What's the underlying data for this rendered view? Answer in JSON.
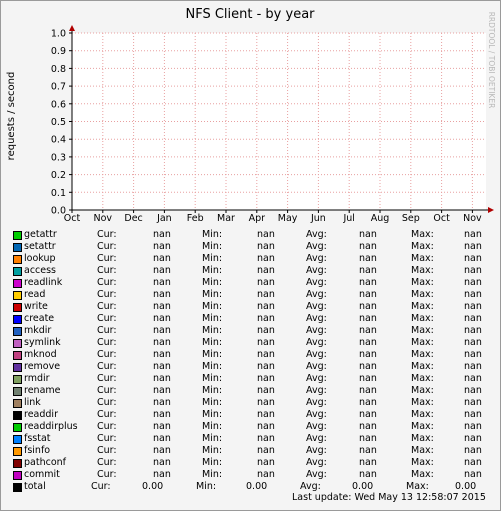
{
  "chart_data": {
    "type": "line",
    "title": "NFS Client - by year",
    "ylabel": "requests / second",
    "xlabel": "",
    "watermark": "RRDTOOL / TOBI OETIKER",
    "ylim": [
      0,
      1.0
    ],
    "yticks": [
      "0.0",
      "0.1",
      "0.2",
      "0.3",
      "0.4",
      "0.5",
      "0.6",
      "0.7",
      "0.8",
      "0.9",
      "1.0"
    ],
    "xticks": [
      "Oct",
      "Nov",
      "Dec",
      "Jan",
      "Feb",
      "Mar",
      "Apr",
      "May",
      "Jun",
      "Jul",
      "Aug",
      "Sep",
      "Oct",
      "Nov"
    ],
    "grid": true,
    "series": [
      {
        "name": "getattr",
        "color": "#00cc00",
        "cur": "nan",
        "min": "nan",
        "avg": "nan",
        "max": "nan"
      },
      {
        "name": "setattr",
        "color": "#0066b3",
        "cur": "nan",
        "min": "nan",
        "avg": "nan",
        "max": "nan"
      },
      {
        "name": "lookup",
        "color": "#ff8000",
        "cur": "nan",
        "min": "nan",
        "avg": "nan",
        "max": "nan"
      },
      {
        "name": "access",
        "color": "#00a0a0",
        "cur": "nan",
        "min": "nan",
        "avg": "nan",
        "max": "nan"
      },
      {
        "name": "readlink",
        "color": "#cc00cc",
        "cur": "nan",
        "min": "nan",
        "avg": "nan",
        "max": "nan"
      },
      {
        "name": "read",
        "color": "#ffcc00",
        "cur": "nan",
        "min": "nan",
        "avg": "nan",
        "max": "nan"
      },
      {
        "name": "write",
        "color": "#cc0000",
        "cur": "nan",
        "min": "nan",
        "avg": "nan",
        "max": "nan"
      },
      {
        "name": "create",
        "color": "#0000ff",
        "cur": "nan",
        "min": "nan",
        "avg": "nan",
        "max": "nan"
      },
      {
        "name": "mkdir",
        "color": "#2060c0",
        "cur": "nan",
        "min": "nan",
        "avg": "nan",
        "max": "nan"
      },
      {
        "name": "symlink",
        "color": "#c060c0",
        "cur": "nan",
        "min": "nan",
        "avg": "nan",
        "max": "nan"
      },
      {
        "name": "mknod",
        "color": "#c04080",
        "cur": "nan",
        "min": "nan",
        "avg": "nan",
        "max": "nan"
      },
      {
        "name": "remove",
        "color": "#6030a0",
        "cur": "nan",
        "min": "nan",
        "avg": "nan",
        "max": "nan"
      },
      {
        "name": "rmdir",
        "color": "#80a060",
        "cur": "nan",
        "min": "nan",
        "avg": "nan",
        "max": "nan"
      },
      {
        "name": "rename",
        "color": "#708070",
        "cur": "nan",
        "min": "nan",
        "avg": "nan",
        "max": "nan"
      },
      {
        "name": "link",
        "color": "#a08060",
        "cur": "nan",
        "min": "nan",
        "avg": "nan",
        "max": "nan"
      },
      {
        "name": "readdir",
        "color": "#000000",
        "cur": "nan",
        "min": "nan",
        "avg": "nan",
        "max": "nan"
      },
      {
        "name": "readdirplus",
        "color": "#00cc00",
        "cur": "nan",
        "min": "nan",
        "avg": "nan",
        "max": "nan"
      },
      {
        "name": "fsstat",
        "color": "#0080ff",
        "cur": "nan",
        "min": "nan",
        "avg": "nan",
        "max": "nan"
      },
      {
        "name": "fsinfo",
        "color": "#ff9900",
        "cur": "nan",
        "min": "nan",
        "avg": "nan",
        "max": "nan"
      },
      {
        "name": "pathconf",
        "color": "#800000",
        "cur": "nan",
        "min": "nan",
        "avg": "nan",
        "max": "nan"
      },
      {
        "name": "commit",
        "color": "#c000c0",
        "cur": "nan",
        "min": "nan",
        "avg": "nan",
        "max": "nan"
      },
      {
        "name": "total",
        "color": "#000000",
        "cur": "0.00",
        "min": "0.00",
        "avg": "0.00",
        "max": "0.00"
      }
    ]
  },
  "legend_labels": {
    "cur": "Cur:",
    "min": "Min:",
    "avg": "Avg:",
    "max": "Max:"
  },
  "last_update": "Last update: Wed May 13 12:58:07 2015"
}
